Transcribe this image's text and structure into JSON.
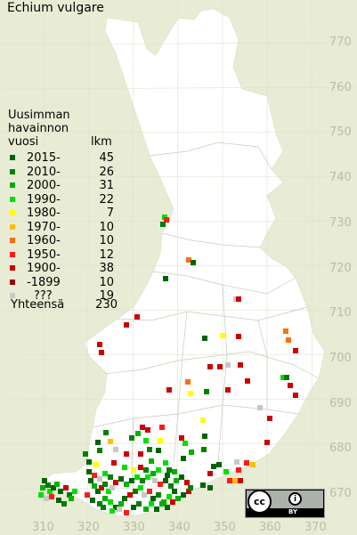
{
  "title": "Echium vulgare",
  "legend": {
    "heading": [
      "Uusimman",
      "havainnon"
    ],
    "col_year": "vuosi",
    "col_count": "lkm",
    "rows": [
      {
        "label": "2015-",
        "count": "45",
        "color": "#006400"
      },
      {
        "label": "2010-",
        "count": "26",
        "color": "#008000"
      },
      {
        "label": "2000-",
        "count": "31",
        "color": "#00b000"
      },
      {
        "label": "1990-",
        "count": "22",
        "color": "#00e000"
      },
      {
        "label": "1980-",
        "count": "7",
        "color": "#ffff00"
      },
      {
        "label": "1970-",
        "count": "10",
        "color": "#ffc000"
      },
      {
        "label": "1960-",
        "count": "10",
        "color": "#ff7000"
      },
      {
        "label": "1950-",
        "count": "12",
        "color": "#ff1a1a"
      },
      {
        "label": "1900-",
        "count": "38",
        "color": "#cc0000"
      },
      {
        "label": "-1899",
        "count": "10",
        "color": "#990000"
      },
      {
        "label": "???",
        "count": "19",
        "color": "#c8c8c8"
      }
    ],
    "total_label": "Yhteensä",
    "total_value": "230"
  },
  "axes": {
    "y_ticks": [
      "770",
      "760",
      "750",
      "740",
      "730",
      "720",
      "710",
      "700",
      "690",
      "680",
      "670"
    ],
    "x_ticks": [
      "310",
      "320",
      "330",
      "340",
      "350",
      "360",
      "370"
    ]
  },
  "license": {
    "cc": "cc",
    "by": "BY"
  },
  "colors": {
    "background": "#e9ecd4",
    "land": "#ffffff",
    "grid": "#d4d8c4",
    "border": "#c9cdb8"
  }
}
